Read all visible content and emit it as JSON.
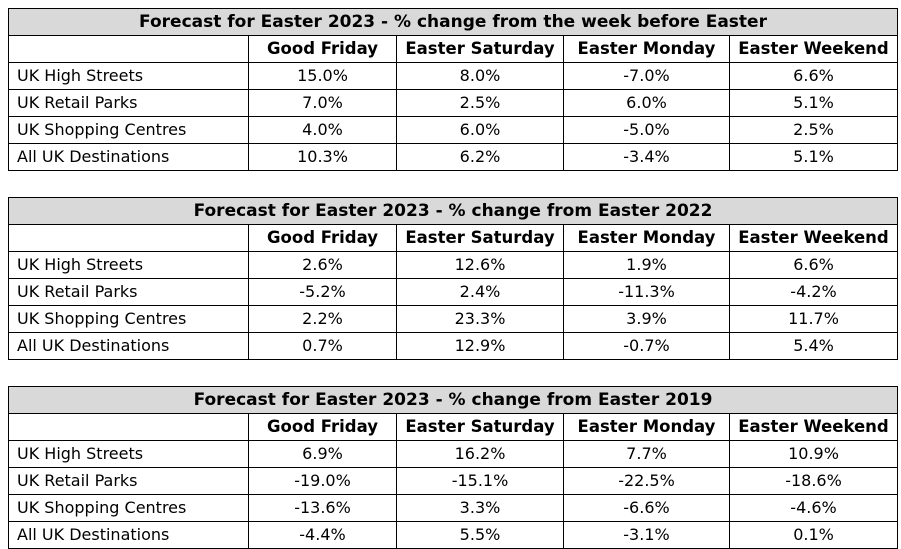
{
  "tables": [
    {
      "title": "Forecast for Easter 2023 - % change from the week before Easter",
      "columns": [
        "Good Friday",
        "Easter Saturday",
        "Easter Monday",
        "Easter Weekend"
      ],
      "rows": [
        {
          "label": "UK High Streets",
          "values": [
            "15.0%",
            "8.0%",
            "-7.0%",
            "6.6%"
          ]
        },
        {
          "label": "UK Retail Parks",
          "values": [
            "7.0%",
            "2.5%",
            "6.0%",
            "5.1%"
          ]
        },
        {
          "label": "UK Shopping Centres",
          "values": [
            "4.0%",
            "6.0%",
            "-5.0%",
            "2.5%"
          ]
        },
        {
          "label": "All UK Destinations",
          "values": [
            "10.3%",
            "6.2%",
            "-3.4%",
            "5.1%"
          ]
        }
      ]
    },
    {
      "title": "Forecast for Easter 2023 - % change from Easter 2022",
      "columns": [
        "Good Friday",
        "Easter Saturday",
        "Easter Monday",
        "Easter Weekend"
      ],
      "rows": [
        {
          "label": "UK High Streets",
          "values": [
            "2.6%",
            "12.6%",
            "1.9%",
            "6.6%"
          ]
        },
        {
          "label": "UK Retail Parks",
          "values": [
            "-5.2%",
            "2.4%",
            "-11.3%",
            "-4.2%"
          ]
        },
        {
          "label": "UK Shopping Centres",
          "values": [
            "2.2%",
            "23.3%",
            "3.9%",
            "11.7%"
          ]
        },
        {
          "label": "All UK Destinations",
          "values": [
            "0.7%",
            "12.9%",
            "-0.7%",
            "5.4%"
          ]
        }
      ]
    },
    {
      "title": "Forecast for Easter 2023 - % change from Easter 2019",
      "columns": [
        "Good Friday",
        "Easter Saturday",
        "Easter Monday",
        "Easter Weekend"
      ],
      "rows": [
        {
          "label": "UK High Streets",
          "values": [
            "6.9%",
            "16.2%",
            "7.7%",
            "10.9%"
          ]
        },
        {
          "label": "UK Retail Parks",
          "values": [
            "-19.0%",
            "-15.1%",
            "-22.5%",
            "-18.6%"
          ]
        },
        {
          "label": "UK Shopping Centres",
          "values": [
            "-13.6%",
            "3.3%",
            "-6.6%",
            "-4.6%"
          ]
        },
        {
          "label": "All UK Destinations",
          "values": [
            "-4.4%",
            "5.5%",
            "-3.1%",
            "0.1%"
          ]
        }
      ]
    }
  ]
}
